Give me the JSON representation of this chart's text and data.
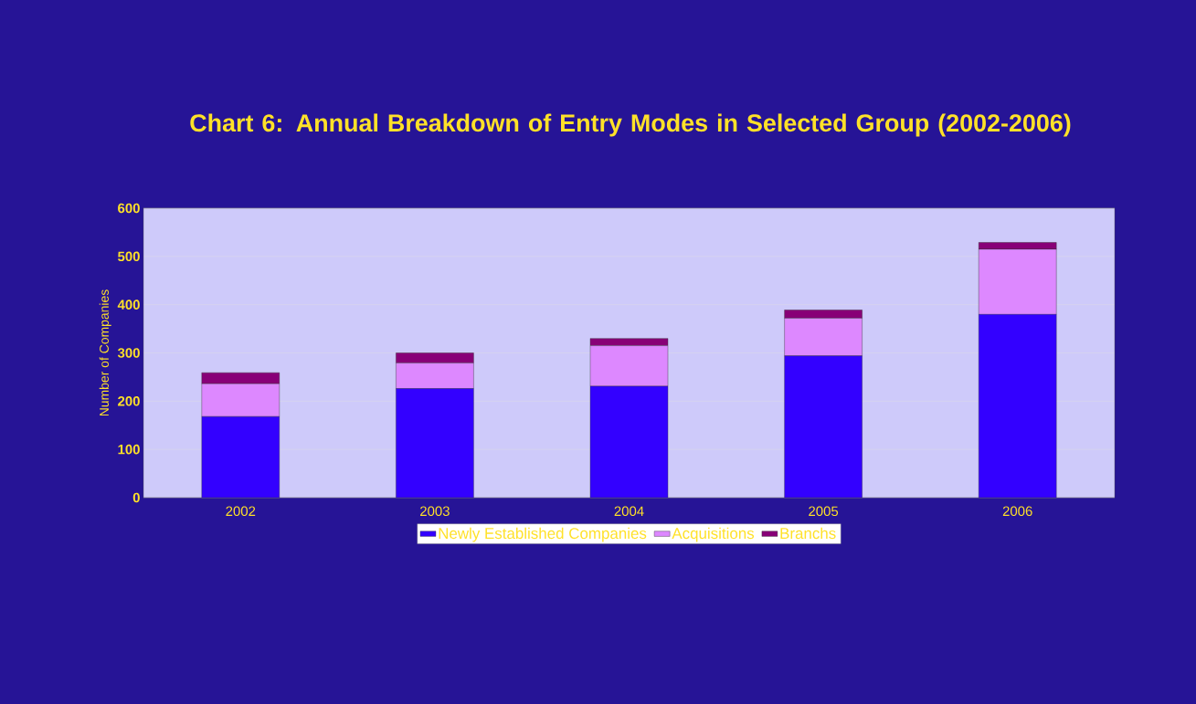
{
  "chart_data": {
    "type": "bar",
    "stacked": true,
    "title": "Chart 6: Annual Breakdown of Entry Modes in Selected Group (2002-2006)",
    "ylabel": "Number of Companies",
    "categories": [
      "2002",
      "2003",
      "2004",
      "2005",
      "2006"
    ],
    "series": [
      {
        "name": "Newly Established Companies",
        "color": "#3300ff",
        "values": [
          168,
          226,
          231,
          294,
          380
        ]
      },
      {
        "name": "Acquisitions",
        "color": "#dd88ff",
        "values": [
          68,
          53,
          84,
          78,
          135
        ]
      },
      {
        "name": "Branchs",
        "color": "#880077",
        "values": [
          23,
          21,
          15,
          17,
          14
        ]
      }
    ],
    "ylim": [
      0,
      600
    ],
    "yticks": [
      0,
      100,
      200,
      300,
      400,
      500,
      600
    ],
    "grid": "y",
    "legend": "bottom"
  }
}
